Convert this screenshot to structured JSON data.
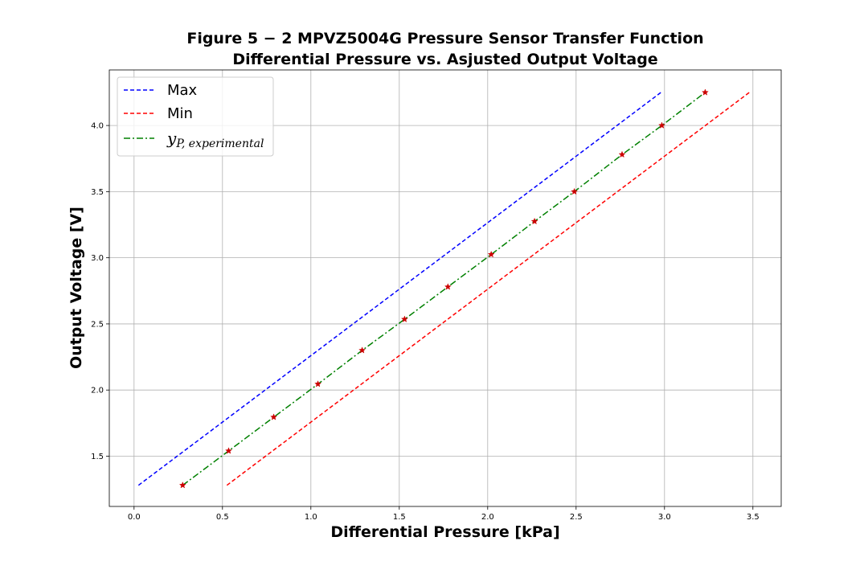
{
  "chart_data": {
    "type": "line",
    "title_line1": "Figure 5 − 2 MPVZ5004G Pressure Sensor Transfer Function",
    "title_line2": "Differential Pressure vs. Asjusted Output Voltage",
    "xlabel": "Differential Pressure [kPa]",
    "ylabel": "Output Voltage [V]",
    "xlim": [
      -0.14,
      3.66
    ],
    "ylim": [
      1.12,
      4.42
    ],
    "xticks": [
      0.0,
      0.5,
      1.0,
      1.5,
      2.0,
      2.5,
      3.0,
      3.5
    ],
    "xtick_labels": [
      "0.0",
      "0.5",
      "1.0",
      "1.5",
      "2.0",
      "2.5",
      "3.0",
      "3.5"
    ],
    "yticks": [
      1.5,
      2.0,
      2.5,
      3.0,
      3.5,
      4.0
    ],
    "ytick_labels": [
      "1.5",
      "2.0",
      "2.5",
      "3.0",
      "3.5",
      "4.0"
    ],
    "grid": true,
    "legend_position": "top-left",
    "series": [
      {
        "name": "Max",
        "color": "#0000ff",
        "style": "dashed",
        "x": [
          0.025,
          2.98
        ],
        "y": [
          1.28,
          4.25
        ]
      },
      {
        "name": "Min",
        "color": "#ff0000",
        "style": "dashed",
        "x": [
          0.525,
          3.48
        ],
        "y": [
          1.28,
          4.25
        ]
      },
      {
        "name": "y_P,experimental",
        "legend_main": "y",
        "legend_sub": "P, experimental",
        "color": "#008000",
        "style": "dashdot",
        "marker": "star",
        "marker_color": "#cc0000",
        "x": [
          0.275,
          0.535,
          0.79,
          1.04,
          1.29,
          1.53,
          1.775,
          2.02,
          2.265,
          2.49,
          2.76,
          2.985,
          3.23
        ],
        "y": [
          1.28,
          1.54,
          1.795,
          2.045,
          2.3,
          2.535,
          2.78,
          3.025,
          3.275,
          3.5,
          3.78,
          4.0,
          4.25
        ]
      }
    ]
  }
}
